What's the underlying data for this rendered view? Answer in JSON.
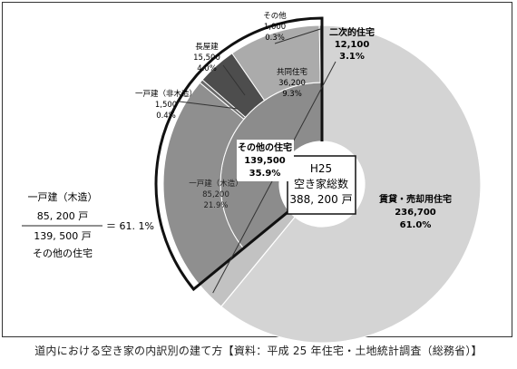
{
  "chart_data": {
    "type": "pie",
    "inner": {
      "slices": [
        {
          "name": "賃貸・売却用住宅",
          "value": 236700,
          "percent": "61.0%",
          "color": "#d4d4d4"
        },
        {
          "name": "二次的住宅",
          "value": 12100,
          "percent": "3.1%",
          "color": "#c2c2c2"
        },
        {
          "name": "その他の住宅",
          "value": 139500,
          "percent": "35.9%",
          "color": "#8c8c8c"
        }
      ]
    },
    "breakdown": {
      "parent": "その他の住宅",
      "slices": [
        {
          "name": "一戸建（木造）",
          "value": 85200,
          "percent": "21.9%",
          "color": "#8f8f8f"
        },
        {
          "name": "一戸建（非木造）",
          "value": 1500,
          "percent": "0.4%",
          "color": "#6a6a6a"
        },
        {
          "name": "長屋建",
          "value": 15500,
          "percent": "4.0%",
          "color": "#4d4d4d"
        },
        {
          "name": "共同住宅",
          "value": 36200,
          "percent": "9.3%",
          "color": "#ababab"
        },
        {
          "name": "その他",
          "value": 1000,
          "percent": "0.3%",
          "color": "#7a7a7a"
        }
      ]
    }
  },
  "center": {
    "line1": "H25",
    "line2": "空き家総数",
    "line3": "388, 200 戸"
  },
  "labels": {
    "rental": {
      "name": "賃貸・売却用住宅",
      "value": "236,700",
      "percent": "61.0%"
    },
    "secondary": {
      "name": "二次的住宅",
      "value": "12,100",
      "percent": "3.1%"
    },
    "other_house": {
      "name": "その他の住宅",
      "value": "139,500",
      "percent": "35.9%"
    },
    "wood": {
      "name": "一戸建（木造）",
      "value": "85,200",
      "percent": "21.9%"
    },
    "nonwood": {
      "name": "一戸建（非木造）",
      "value": "1,500",
      "percent": "0.4%"
    },
    "row": {
      "name": "長屋建",
      "value": "15,500",
      "percent": "4.0%"
    },
    "apartment": {
      "name": "共同住宅",
      "value": "36,200",
      "percent": "9.3%"
    },
    "others": {
      "name": "その他",
      "value": "1,000",
      "percent": "0.3%"
    }
  },
  "formula": {
    "title": "一戸建（木造）",
    "numerator": "85, 200 戸",
    "denominator": "139, 500 戸",
    "result": "＝ 61. 1%",
    "subtitle": "その他の住宅"
  },
  "caption": "道内における空き家の内訳別の建て方【資料：平成 25 年住宅・土地統計調査（総務省）】"
}
